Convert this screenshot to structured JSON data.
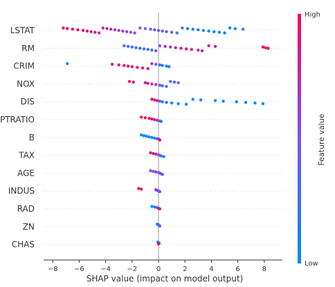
{
  "chart_data": {
    "type": "scatter",
    "subtype": "shap-beeswarm-summary",
    "xlabel": "SHAP value (impact on model output)",
    "xlim": [
      -8.4,
      9.1
    ],
    "xticks": [
      -8,
      -6,
      -4,
      -2,
      0,
      2,
      4,
      6,
      8
    ],
    "features": [
      {
        "name": "LSTAT",
        "points": [
          [
            -7.2,
            0.95
          ],
          [
            -6.9,
            0.95
          ],
          [
            -6.5,
            0.9
          ],
          [
            -6.1,
            0.9
          ],
          [
            -5.7,
            0.88
          ],
          [
            -5.4,
            0.85
          ],
          [
            -5.1,
            0.85
          ],
          [
            -4.8,
            0.82
          ],
          [
            -4.5,
            0.8
          ],
          [
            -4.2,
            0.78
          ],
          [
            -3.9,
            0.75
          ],
          [
            -3.6,
            0.72
          ],
          [
            -3.3,
            0.68
          ],
          [
            -3.0,
            0.62
          ],
          [
            -2.7,
            0.6
          ],
          [
            -2.4,
            0.58
          ],
          [
            -2.1,
            0.55
          ],
          [
            -1.8,
            0.5
          ],
          [
            -1.4,
            0.5
          ],
          [
            -1.0,
            0.45
          ],
          [
            -0.6,
            0.48
          ],
          [
            -0.3,
            0.42
          ],
          [
            0.0,
            0.4
          ],
          [
            0.3,
            0.38
          ],
          [
            0.6,
            0.35
          ],
          [
            1.0,
            0.3
          ],
          [
            1.4,
            0.25
          ],
          [
            1.8,
            0.18
          ],
          [
            2.2,
            0.15
          ],
          [
            2.6,
            0.12
          ],
          [
            3.0,
            0.1
          ],
          [
            3.4,
            0.08
          ],
          [
            3.8,
            0.06
          ],
          [
            4.2,
            0.05
          ],
          [
            4.6,
            0.04
          ],
          [
            5.0,
            0.03
          ],
          [
            5.4,
            0.02
          ],
          [
            5.8,
            0.05
          ],
          [
            6.4,
            0.02
          ]
        ]
      },
      {
        "name": "RM",
        "points": [
          [
            -2.6,
            0.25
          ],
          [
            -2.3,
            0.3
          ],
          [
            -2.0,
            0.2
          ],
          [
            -1.7,
            0.25
          ],
          [
            -1.4,
            0.2
          ],
          [
            -1.1,
            0.3
          ],
          [
            -0.8,
            0.2
          ],
          [
            -0.5,
            0.35
          ],
          [
            -0.2,
            0.4
          ],
          [
            0.1,
            0.5
          ],
          [
            0.5,
            0.75
          ],
          [
            0.9,
            0.7
          ],
          [
            1.3,
            0.75
          ],
          [
            1.7,
            0.8
          ],
          [
            2.1,
            0.85
          ],
          [
            2.5,
            0.85
          ],
          [
            3.0,
            0.8
          ],
          [
            3.3,
            0.8
          ],
          [
            3.8,
            0.82
          ],
          [
            4.3,
            0.8
          ],
          [
            7.9,
            0.98
          ],
          [
            8.1,
            0.98
          ],
          [
            8.3,
            0.97
          ]
        ]
      },
      {
        "name": "CRIM",
        "points": [
          [
            -6.9,
            0.1
          ],
          [
            -3.5,
            0.95
          ],
          [
            -3.0,
            0.95
          ],
          [
            -2.6,
            0.9
          ],
          [
            -2.3,
            0.9
          ],
          [
            -2.0,
            0.92
          ],
          [
            -1.6,
            0.88
          ],
          [
            -1.2,
            0.85
          ],
          [
            -0.8,
            0.8
          ],
          [
            -0.5,
            0.7
          ],
          [
            -0.2,
            0.5
          ],
          [
            0.1,
            0.15
          ],
          [
            0.3,
            0.08
          ],
          [
            0.6,
            0.05
          ],
          [
            0.8,
            0.06
          ]
        ]
      },
      {
        "name": "NOX",
        "points": [
          [
            -2.2,
            0.95
          ],
          [
            -1.9,
            0.95
          ],
          [
            -1.0,
            0.85
          ],
          [
            -0.8,
            0.8
          ],
          [
            -0.5,
            0.75
          ],
          [
            -0.2,
            0.6
          ],
          [
            0.1,
            0.4
          ],
          [
            0.3,
            0.3
          ],
          [
            0.6,
            0.25
          ],
          [
            0.9,
            0.3
          ],
          [
            1.2,
            0.4
          ],
          [
            1.5,
            0.35
          ]
        ]
      },
      {
        "name": "DIS",
        "points": [
          [
            -0.5,
            0.95
          ],
          [
            -0.3,
            0.9
          ],
          [
            -0.1,
            0.85
          ],
          [
            0.1,
            0.4
          ],
          [
            0.3,
            0.2
          ],
          [
            0.6,
            0.1
          ],
          [
            1.0,
            0.05
          ],
          [
            1.5,
            0.05
          ],
          [
            2.1,
            0.03
          ],
          [
            2.6,
            0.03
          ],
          [
            3.2,
            0.02
          ],
          [
            4.3,
            0.02
          ],
          [
            4.9,
            0.02
          ],
          [
            5.9,
            0.02
          ],
          [
            6.6,
            0.02
          ],
          [
            7.3,
            0.02
          ],
          [
            7.9,
            0.02
          ]
        ]
      },
      {
        "name": "PTRATIO",
        "points": [
          [
            -1.3,
            0.95
          ],
          [
            -1.0,
            0.95
          ],
          [
            -0.7,
            0.9
          ],
          [
            -0.5,
            0.85
          ],
          [
            -0.3,
            0.85
          ],
          [
            -0.1,
            0.7
          ],
          [
            0.1,
            0.5
          ],
          [
            0.2,
            0.2
          ]
        ]
      },
      {
        "name": "B",
        "points": [
          [
            -1.3,
            0.05
          ],
          [
            -1.1,
            0.05
          ],
          [
            -0.9,
            0.05
          ],
          [
            -0.7,
            0.08
          ],
          [
            -0.5,
            0.06
          ],
          [
            -0.3,
            0.1
          ],
          [
            -0.1,
            0.4
          ],
          [
            0.05,
            0.8
          ],
          [
            0.1,
            0.9
          ]
        ]
      },
      {
        "name": "TAX",
        "points": [
          [
            -0.6,
            0.9
          ],
          [
            -0.4,
            0.85
          ],
          [
            -0.2,
            0.8
          ],
          [
            0.0,
            0.6
          ],
          [
            0.1,
            0.4
          ],
          [
            0.2,
            0.2
          ],
          [
            0.4,
            0.1
          ]
        ]
      },
      {
        "name": "AGE",
        "points": [
          [
            -0.6,
            0.5
          ],
          [
            -0.4,
            0.4
          ],
          [
            -0.2,
            0.7
          ],
          [
            0.0,
            0.5
          ],
          [
            0.1,
            0.35
          ],
          [
            0.2,
            0.6
          ],
          [
            0.3,
            0.3
          ]
        ]
      },
      {
        "name": "INDUS",
        "points": [
          [
            -1.5,
            0.95
          ],
          [
            -1.3,
            0.95
          ],
          [
            -0.2,
            0.8
          ],
          [
            -0.1,
            0.6
          ],
          [
            0.0,
            0.4
          ],
          [
            0.1,
            0.3
          ]
        ]
      },
      {
        "name": "RAD",
        "points": [
          [
            -0.5,
            0.05
          ],
          [
            -0.3,
            0.05
          ],
          [
            -0.1,
            0.2
          ],
          [
            0.0,
            0.8
          ],
          [
            0.1,
            0.9
          ]
        ]
      },
      {
        "name": "ZN",
        "points": [
          [
            -0.1,
            0.2
          ],
          [
            0.0,
            0.2
          ],
          [
            0.05,
            0.4
          ],
          [
            0.1,
            0.3
          ]
        ]
      },
      {
        "name": "CHAS",
        "points": [
          [
            -0.05,
            0.05
          ],
          [
            0.0,
            0.05
          ],
          [
            0.05,
            0.05
          ],
          [
            0.0,
            0.98
          ]
        ]
      }
    ],
    "colorbar": {
      "title": "Feature value",
      "high_label": "High",
      "low_label": "Low",
      "low_color": "#008bfb",
      "high_color": "#ff0052"
    }
  }
}
